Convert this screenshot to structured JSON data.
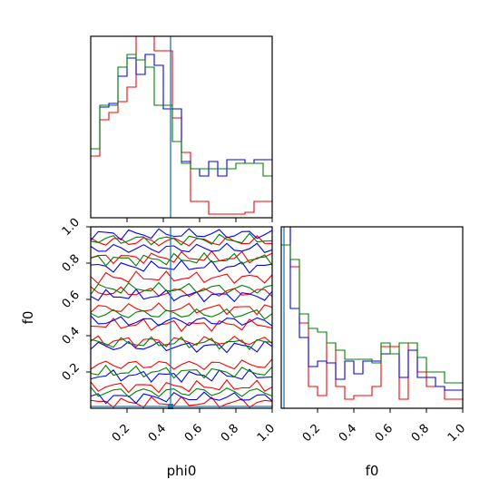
{
  "chart_data": [
    {
      "id": "hist-phi0",
      "type": "histogram",
      "xlim": [
        0,
        1
      ],
      "truth": 0.44,
      "bins": 20,
      "series": [
        {
          "color": "#ff0000",
          "values": [
            0.34,
            0.54,
            0.58,
            0.64,
            0.72,
            1.05,
            1.05,
            0.92,
            0.92,
            0.55,
            0.36,
            0.09,
            0.09,
            0.02,
            0.02,
            0.02,
            0.02,
            0.03,
            0.09,
            0.09
          ]
        },
        {
          "color": "#0000ff",
          "values": [
            0.38,
            0.61,
            0.63,
            0.78,
            0.88,
            0.79,
            0.9,
            0.84,
            0.6,
            0.6,
            0.31,
            0.27,
            0.23,
            0.31,
            0.23,
            0.32,
            0.32,
            0.3,
            0.32,
            0.32
          ]
        },
        {
          "color": "#008000",
          "values": [
            0.38,
            0.62,
            0.62,
            0.83,
            0.9,
            0.87,
            0.83,
            0.62,
            0.62,
            0.42,
            0.3,
            0.27,
            0.27,
            0.27,
            0.27,
            0.27,
            0.3,
            0.3,
            0.3,
            0.23
          ]
        }
      ]
    },
    {
      "id": "contour-phi0-f0",
      "type": "contour",
      "xlim": [
        0,
        1
      ],
      "ylim": [
        0,
        1
      ],
      "xlabel": "phi0",
      "ylabel": "f0",
      "truth": [
        0.44,
        0.0
      ],
      "xticks": [
        0.2,
        0.4,
        0.6,
        0.8,
        1.0
      ],
      "xticklabels": [
        "0.2",
        "0.4",
        "0.6",
        "0.8",
        "1.0"
      ],
      "yticks": [
        0.2,
        0.4,
        0.6,
        0.8,
        1.0
      ],
      "yticklabels": [
        "0.2",
        "0.4",
        "0.6",
        "0.8",
        "1.0"
      ],
      "series": [
        {
          "color": "#ff0000",
          "levels": [
            0.03,
            0.12,
            0.24,
            0.37,
            0.46,
            0.55,
            0.64,
            0.72,
            0.83,
            0.92
          ]
        },
        {
          "color": "#0000ff",
          "levels": [
            0.06,
            0.18,
            0.34,
            0.48,
            0.62,
            0.78,
            0.88,
            0.96
          ]
        },
        {
          "color": "#008000",
          "levels": [
            0.09,
            0.2,
            0.36,
            0.52,
            0.66,
            0.82,
            0.93
          ]
        }
      ]
    },
    {
      "id": "hist-f0",
      "type": "histogram",
      "xlim": [
        0,
        1
      ],
      "truth": 0.0,
      "bins": 20,
      "xlabel": "f0",
      "xticks": [
        0.2,
        0.4,
        0.6,
        0.8,
        1.0
      ],
      "xticklabels": [
        "0.2",
        "0.4",
        "0.6",
        "0.8",
        "1.0"
      ],
      "series": [
        {
          "color": "#ff0000",
          "values": [
            1.3,
            0.78,
            0.47,
            0.12,
            0.07,
            0.36,
            0.12,
            0.05,
            0.07,
            0.07,
            0.12,
            0.34,
            0.34,
            0.05,
            0.36,
            0.2,
            0.12,
            0.12,
            0.05,
            0.05
          ]
        },
        {
          "color": "#0000ff",
          "values": [
            1.3,
            0.55,
            0.39,
            0.23,
            0.26,
            0.25,
            0.16,
            0.26,
            0.19,
            0.26,
            0.26,
            0.3,
            0.3,
            0.17,
            0.32,
            0.17,
            0.17,
            0.12,
            0.1,
            0.1
          ]
        },
        {
          "color": "#008000",
          "values": [
            0.9,
            0.82,
            0.52,
            0.44,
            0.42,
            0.36,
            0.32,
            0.27,
            0.27,
            0.27,
            0.25,
            0.36,
            0.3,
            0.36,
            0.36,
            0.28,
            0.2,
            0.2,
            0.14,
            0.14
          ]
        }
      ]
    }
  ]
}
